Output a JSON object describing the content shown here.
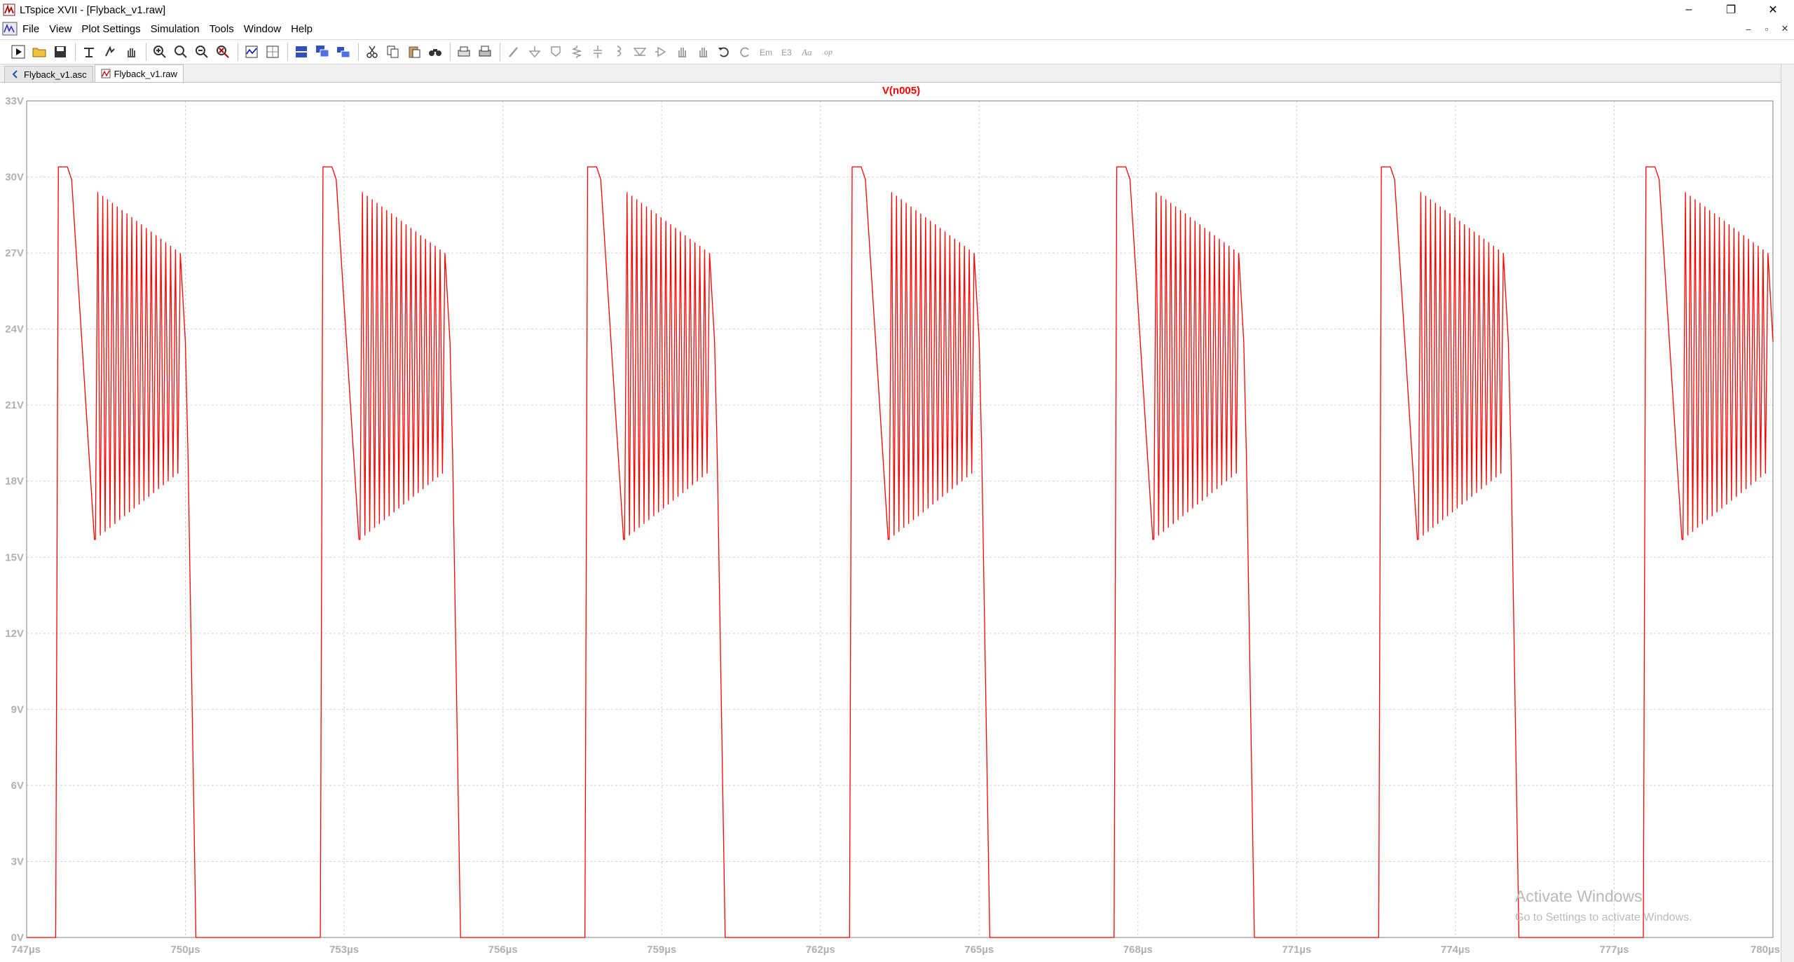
{
  "window": {
    "title": "LTspice XVII - [Flyback_v1.raw]",
    "minimize": "–",
    "restore": "❐",
    "close": "✕"
  },
  "menu": {
    "items": [
      "File",
      "View",
      "Plot Settings",
      "Simulation",
      "Tools",
      "Window",
      "Help"
    ]
  },
  "mdi": {
    "minimize": "–",
    "restore": "▫",
    "close": "✕"
  },
  "toolbar": {
    "icons": [
      "run-icon",
      "open-icon",
      "save-icon",
      "control-panel-icon",
      "halt-icon",
      "pan-icon",
      "zoom-in-icon",
      "zoom-fit-icon",
      "zoom-out-icon",
      "zoom-cancel-icon",
      "autorange-icon",
      "grid-icon",
      "tile-horizontal-icon",
      "cascade-icon",
      "tile-vertical-icon",
      "cut-icon",
      "copy-icon",
      "paste-icon",
      "find-icon",
      "print-setup-icon",
      "print-icon",
      "wire-icon",
      "ground-icon",
      "label-icon",
      "resistor-icon",
      "capacitor-icon",
      "inductor-icon",
      "diode-icon",
      "component-icon",
      "move-icon",
      "drag-icon",
      "undo-icon",
      "redo-icon",
      "rotate-icon",
      "mirror-icon",
      "text-icon",
      "spice-directive-icon"
    ]
  },
  "tabs": [
    {
      "label": "Flyback_v1.asc",
      "icon": "schematic-icon",
      "active": false
    },
    {
      "label": "Flyback_v1.raw",
      "icon": "waveform-icon",
      "active": true
    }
  ],
  "watermark": {
    "line1": "Activate Windows",
    "line2": "Go to Settings to activate Windows."
  },
  "chart_data": {
    "type": "line",
    "title": "V(n005)",
    "xlabel": "",
    "ylabel": "",
    "xlim": [
      747,
      780
    ],
    "ylim": [
      0,
      33
    ],
    "x_ticks": [
      "747µs",
      "750µs",
      "753µs",
      "756µs",
      "759µs",
      "762µs",
      "765µs",
      "768µs",
      "771µs",
      "774µs",
      "777µs",
      "780µs"
    ],
    "y_ticks": [
      "0V",
      "3V",
      "6V",
      "9V",
      "12V",
      "15V",
      "18V",
      "21V",
      "24V",
      "27V",
      "30V",
      "33V"
    ],
    "grid": true,
    "series_color": "#ff0000",
    "series": [
      {
        "name": "V(n005)",
        "period_us": 5.0,
        "first_rise_us": 747.55,
        "pulse_peak_v": 30.4,
        "ringing_start_us": 748.3,
        "ringing_end_us": 749.95,
        "ringing_cycles": 18,
        "ringing_upper_start_v": 29.4,
        "ringing_upper_end_v": 27.0,
        "ringing_lower_start_v": 15.7,
        "ringing_lower_end_v": 18.3,
        "fall_end_us": 750.2,
        "low_level_v": 0
      }
    ]
  }
}
